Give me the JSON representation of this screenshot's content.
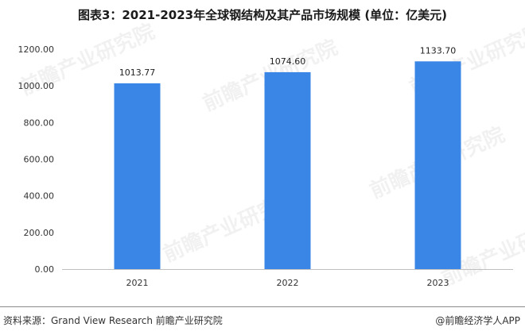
{
  "title": "图表3：2021-2023年全球钢结构及其产品市场规模 (单位：亿美元)",
  "chart_data": {
    "type": "bar",
    "categories": [
      "2021",
      "2022",
      "2023"
    ],
    "values": [
      1013.77,
      1074.6,
      1133.7
    ],
    "value_labels": [
      "1013.77",
      "1074.60",
      "1133.70"
    ],
    "ylim": [
      0,
      1200
    ],
    "yticks": [
      "0.00",
      "200.00",
      "400.00",
      "600.00",
      "800.00",
      "1000.00",
      "1200.00"
    ],
    "xlabel": "",
    "ylabel": "",
    "grid": false,
    "bar_color": "#3a86e6"
  },
  "footer": {
    "source": "资料来源：Grand View Research 前瞻产业研究院",
    "brand": "@前瞻经济学人APP"
  },
  "watermark": "前瞻产业研究院"
}
